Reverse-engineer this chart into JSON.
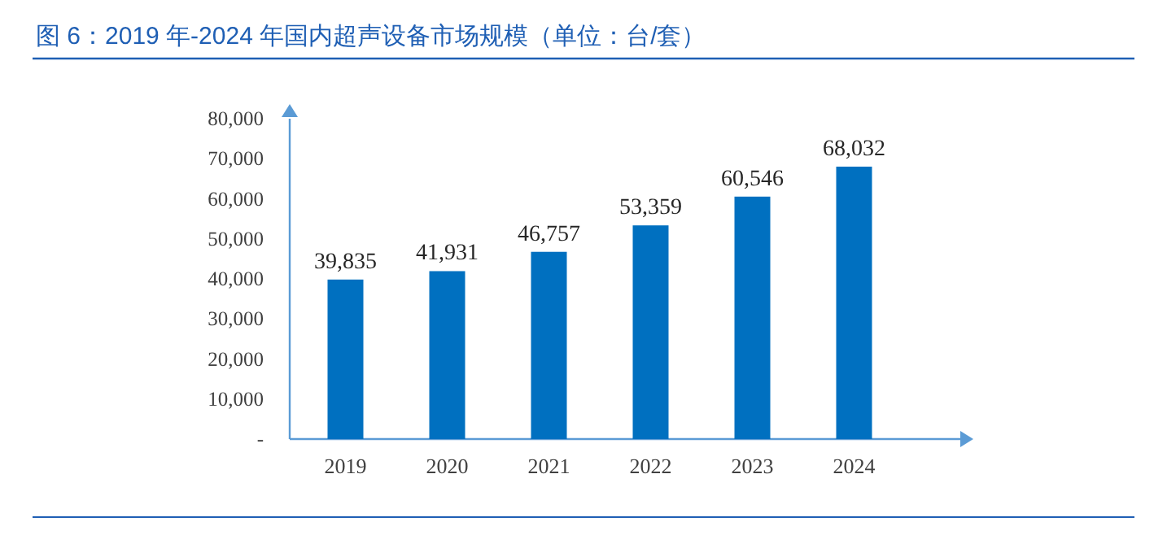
{
  "chart_data": {
    "type": "bar",
    "title": "图 6：2019 年-2024 年国内超声设备市场规模（单位：台/套）",
    "categories": [
      "2019",
      "2020",
      "2021",
      "2022",
      "2023",
      "2024"
    ],
    "values": [
      39835,
      41931,
      46757,
      53359,
      60546,
      68032
    ],
    "value_labels": [
      "39,835",
      "41,931",
      "46,757",
      "53,359",
      "60,546",
      "68,032"
    ],
    "color": "#0070c0",
    "ylim": [
      0,
      80000
    ],
    "yticks": [
      {
        "value": 0,
        "label": "-"
      },
      {
        "value": 10000,
        "label": "10,000"
      },
      {
        "value": 20000,
        "label": "20,000"
      },
      {
        "value": 30000,
        "label": "30,000"
      },
      {
        "value": 40000,
        "label": "40,000"
      },
      {
        "value": 50000,
        "label": "50,000"
      },
      {
        "value": 60000,
        "label": "60,000"
      },
      {
        "value": 70000,
        "label": "70,000"
      },
      {
        "value": 80000,
        "label": "80,000"
      }
    ]
  }
}
